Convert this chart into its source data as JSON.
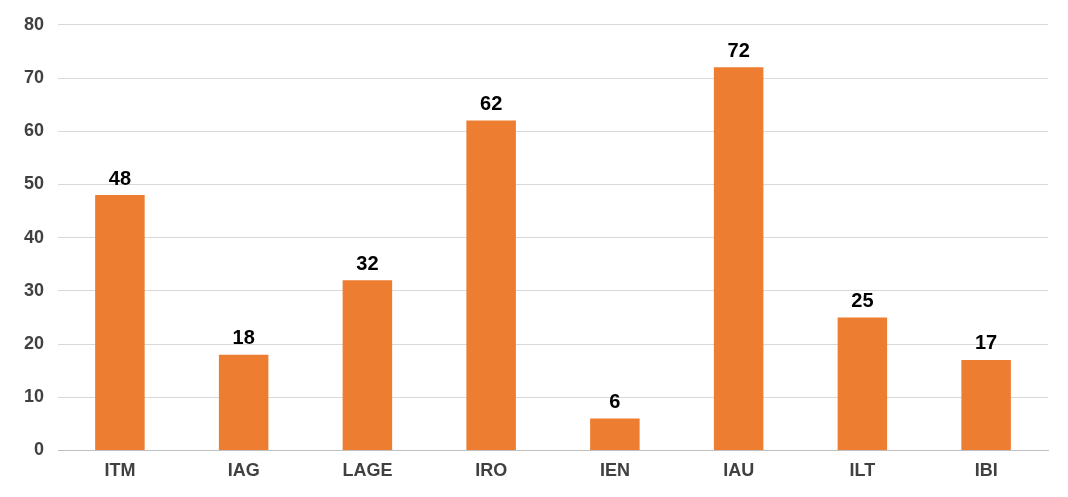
{
  "chart_data": {
    "type": "bar",
    "categories": [
      "ITM",
      "IAG",
      "LAGE",
      "IRO",
      "IEN",
      "IAU",
      "ILT",
      "IBI"
    ],
    "values": [
      48,
      18,
      32,
      62,
      6,
      72,
      25,
      17
    ],
    "color": "#ed7d31",
    "ylim": [
      0,
      80
    ],
    "yticks": [
      0,
      10,
      20,
      30,
      40,
      50,
      60,
      70,
      80
    ],
    "grid": "y",
    "data_labels": true,
    "legend": false
  }
}
